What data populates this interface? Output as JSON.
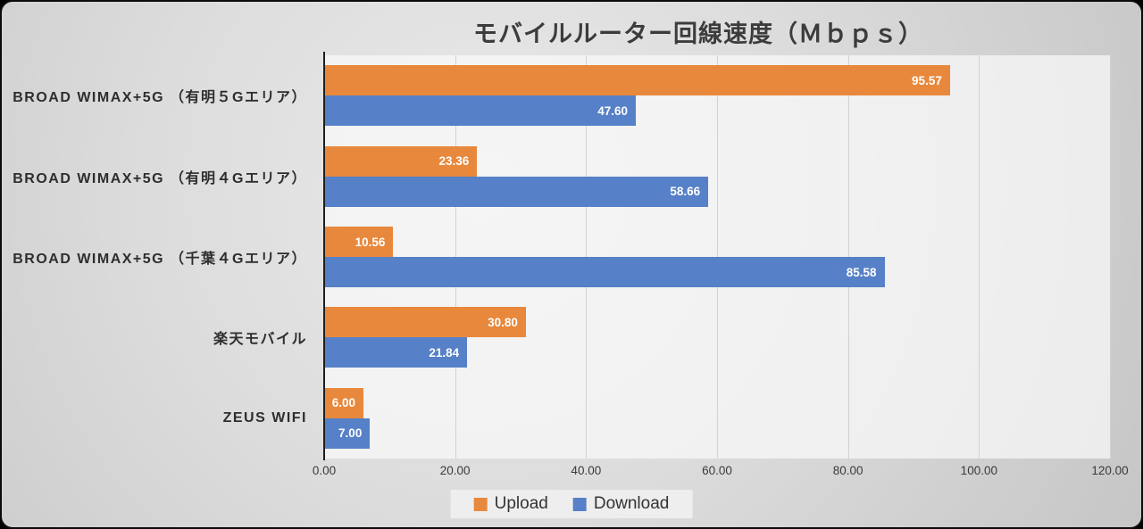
{
  "chart_data": {
    "type": "bar",
    "orientation": "horizontal",
    "title": "モバイルルーター回線速度（Ｍｂｐｓ）",
    "categories": [
      "BROAD WIMAX+5G （有明５Gエリア）",
      "BROAD WIMAX+5G （有明４Gエリア）",
      "BROAD WIMAX+5G （千葉４Gエリア）",
      "楽天モバイル",
      "ZEUS WIFI"
    ],
    "series": [
      {
        "name": "Upload",
        "color": "#E8883C",
        "values": [
          95.57,
          23.36,
          10.56,
          30.8,
          6.0
        ]
      },
      {
        "name": "Download",
        "color": "#5680C7",
        "values": [
          47.6,
          58.66,
          85.58,
          21.84,
          7.0
        ]
      }
    ],
    "x_ticks": [
      "0.00",
      "20.00",
      "40.00",
      "60.00",
      "80.00",
      "100.00",
      "120.00"
    ],
    "xlim": [
      0,
      120
    ],
    "xlabel": "",
    "ylabel": "",
    "grid": true,
    "legend_position": "bottom",
    "value_label_decimals": 2
  },
  "colors": {
    "upload": "#E8883C",
    "download": "#5680C7",
    "title_text": "#3c3c3c",
    "category_text": "#2e2e2e",
    "tick_text": "#3a3a3a",
    "axis_line": "#1e1e1e",
    "gridline": "#d2d2d2",
    "bar_value_text": "#ffffff",
    "slide_background": "#d9d9d9",
    "legend_background": "#f0f0f0"
  }
}
